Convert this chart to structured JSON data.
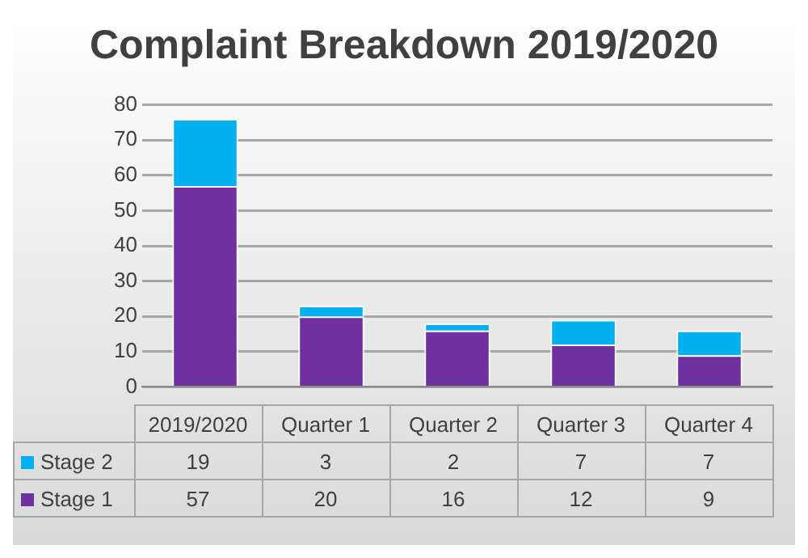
{
  "chart_data": {
    "type": "bar",
    "title": "Complaint Breakdown 2019/2020",
    "stacked": true,
    "categories": [
      "2019/2020",
      "Quarter 1",
      "Quarter 2",
      "Quarter 3",
      "Quarter 4"
    ],
    "series": [
      {
        "name": "Stage 1",
        "color": "#7030a0",
        "values": [
          57,
          20,
          16,
          12,
          9
        ]
      },
      {
        "name": "Stage 2",
        "color": "#00b0f0",
        "values": [
          19,
          3,
          2,
          7,
          7
        ]
      }
    ],
    "ylim": [
      0,
      80
    ],
    "yticks": [
      0,
      10,
      20,
      30,
      40,
      50,
      60,
      70,
      80
    ],
    "grid": "y",
    "legend": "bottom",
    "data_labels": true
  }
}
